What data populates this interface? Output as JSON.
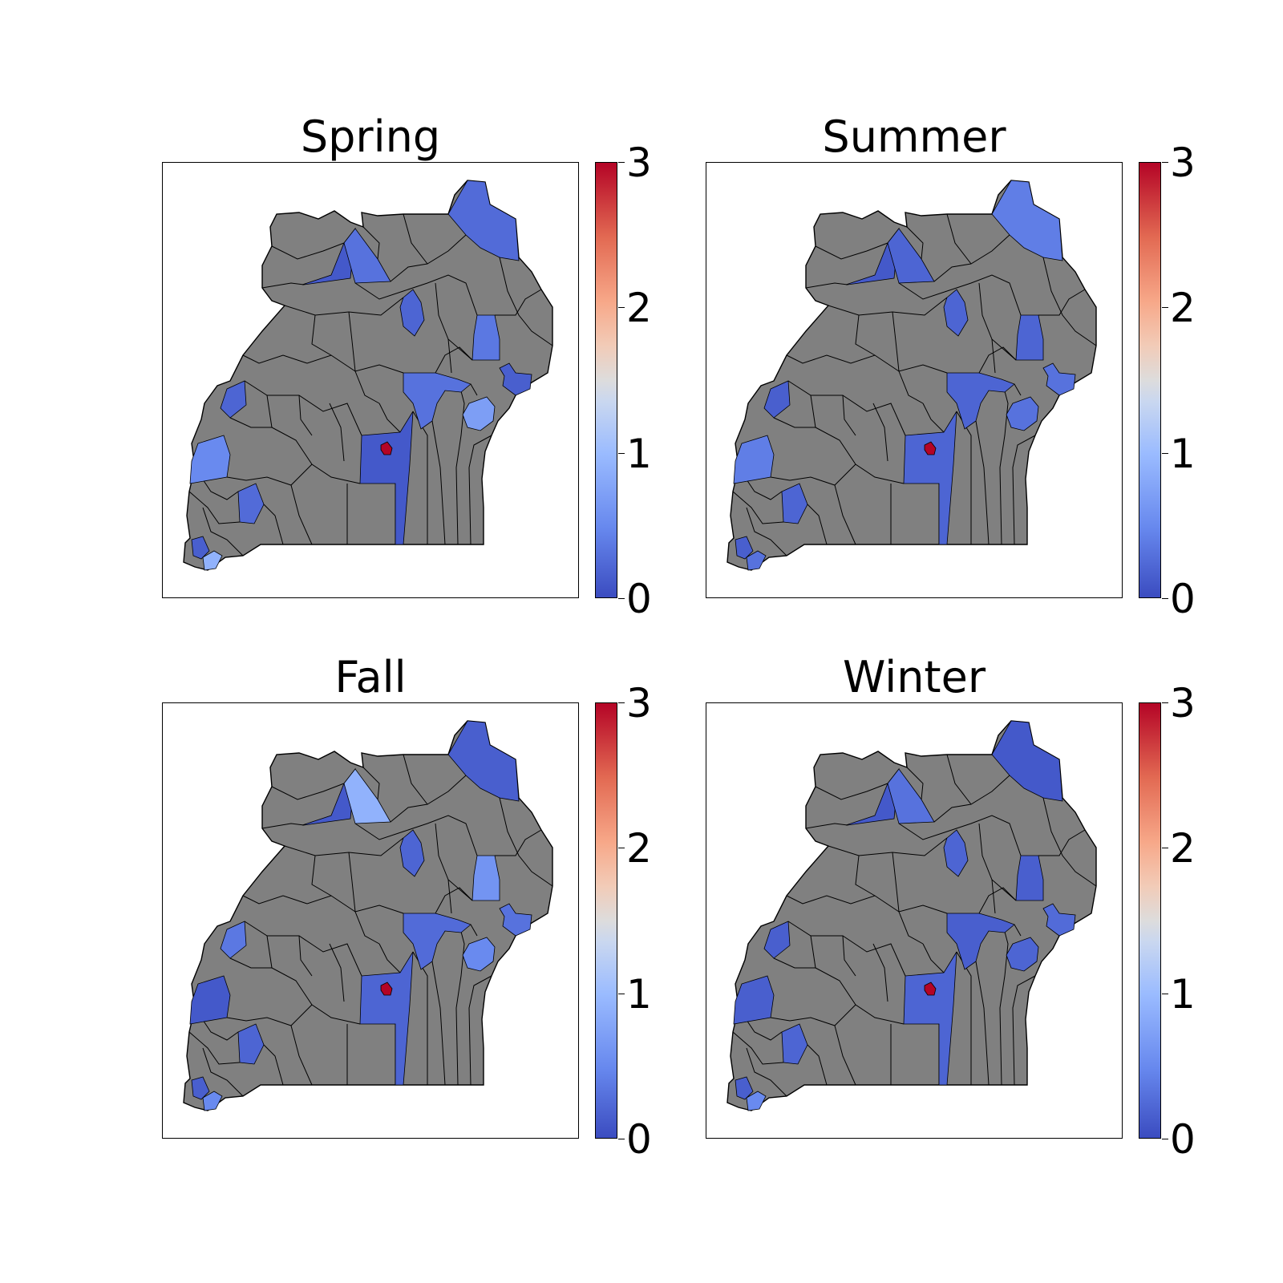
{
  "colorbar": {
    "ticks": [
      "0",
      "1",
      "2",
      "3"
    ],
    "min": 0,
    "max": 3,
    "colormap": "coolwarm"
  },
  "no_data_color": "#808080",
  "panels": [
    {
      "title": "Spring",
      "values": {
        "north_east": 0.25,
        "west_nile_a": 0.1,
        "west_nile_b": 0.3,
        "acholi_small": 0.2,
        "east_strip": 0.35,
        "east_small": 0.15,
        "central_east": 0.3,
        "elgon": 0.7,
        "west_a": 0.2,
        "west_b": 0.5,
        "central": 0.1,
        "kampala": 3.0,
        "southwest": 0.25,
        "sw_tip_a": 0.15,
        "sw_tip_b": 0.9
      }
    },
    {
      "title": "Summer",
      "values": {
        "north_east": 0.4,
        "west_nile_a": 0.1,
        "west_nile_b": 0.2,
        "acholi_small": 0.2,
        "east_strip": 0.2,
        "east_small": 0.3,
        "central_east": 0.2,
        "elgon": 0.3,
        "west_a": 0.15,
        "west_b": 0.4,
        "central": 0.2,
        "kampala": 3.0,
        "southwest": 0.2,
        "sw_tip_a": 0.15,
        "sw_tip_b": 0.3
      }
    },
    {
      "title": "Fall",
      "values": {
        "north_east": 0.15,
        "west_nile_a": 0.1,
        "west_nile_b": 0.9,
        "acholi_small": 0.2,
        "east_strip": 0.6,
        "east_small": 0.3,
        "central_east": 0.25,
        "elgon": 0.5,
        "west_a": 0.35,
        "west_b": 0.1,
        "central": 0.2,
        "kampala": 3.0,
        "southwest": 0.2,
        "sw_tip_a": 0.15,
        "sw_tip_b": 0.5
      }
    },
    {
      "title": "Winter",
      "values": {
        "north_east": 0.1,
        "west_nile_a": 0.1,
        "west_nile_b": 0.3,
        "acholi_small": 0.2,
        "east_strip": 0.15,
        "east_small": 0.25,
        "central_east": 0.15,
        "elgon": 0.2,
        "west_a": 0.15,
        "west_b": 0.15,
        "central": 0.2,
        "kampala": 3.0,
        "southwest": 0.2,
        "sw_tip_a": 0.15,
        "sw_tip_b": 0.5
      }
    }
  ]
}
